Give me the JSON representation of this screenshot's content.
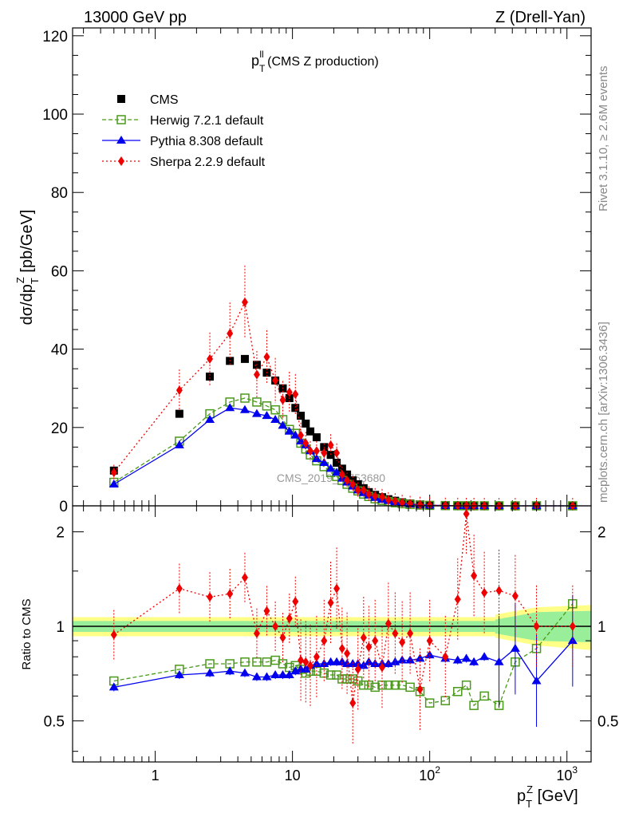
{
  "header": {
    "left": "13000 GeV pp",
    "right": "Z (Drell-Yan)"
  },
  "plot": {
    "title_main": "p",
    "title_sup": "ll",
    "title_sub": "T",
    "title_rest": " (CMS Z production)",
    "watermark": "CMS_2019_I1753680",
    "y_label": "dσ/dp",
    "y_label_sup": "Z",
    "y_label_sub": "T",
    "y_label_rest": " [pb/GeV]",
    "ratio_label": "Ratio to CMS",
    "x_label": "p",
    "x_label_sup": "Z",
    "x_label_sub": "T",
    "x_label_rest": " [GeV]"
  },
  "side_text": {
    "rivet": "Rivet 3.1.10, ≥ 2.6M events",
    "mcplots": "mcplots.cern.ch [arXiv:1306.3436]"
  },
  "legend": [
    {
      "label": "CMS",
      "color": "#000000",
      "marker": "square"
    },
    {
      "label": "Herwig 7.2.1 default",
      "color": "#4a9a1a",
      "marker": "open-square"
    },
    {
      "label": "Pythia 8.308 default",
      "color": "#0000ee",
      "marker": "triangle"
    },
    {
      "label": "Sherpa 2.2.9 default",
      "color": "#ee0000",
      "marker": "diamond"
    }
  ],
  "axes": {
    "top_yticks": [
      "0",
      "20",
      "40",
      "60",
      "80",
      "100",
      "120"
    ],
    "bottom_yticks": [
      "0.5",
      "1",
      "2"
    ],
    "bottom_yticks_right": [
      "0.5",
      "1",
      "2"
    ],
    "xtick_labels": [
      {
        "base": "1",
        "exp": ""
      },
      {
        "base": "10",
        "exp": ""
      },
      {
        "base": "10",
        "exp": "2"
      },
      {
        "base": "10",
        "exp": "3"
      }
    ]
  },
  "chart_data": [
    {
      "type": "scatter",
      "title": "pT ll (CMS Z production)",
      "xlabel": "pT Z [GeV]",
      "ylabel": "dσ/dpT Z [pb/GeV]",
      "xscale": "log",
      "xlim": [
        0.25,
        1500
      ],
      "ylim": [
        0,
        122
      ],
      "x": [
        0.5,
        1.5,
        2.5,
        3.5,
        4.5,
        5.5,
        6.5,
        7.5,
        8.5,
        9.5,
        10.5,
        11.5,
        12.5,
        13.5,
        15,
        17,
        19,
        21,
        23,
        25,
        27.5,
        30,
        33,
        36,
        40,
        45,
        50,
        56,
        63,
        72,
        85,
        100,
        130,
        160,
        185,
        210,
        250,
        320,
        420,
        600,
        1100
      ],
      "series": [
        {
          "name": "CMS",
          "values": [
            9,
            23.5,
            33,
            37,
            37.5,
            36,
            34,
            32,
            30,
            27.5,
            25,
            23,
            21,
            19,
            17.5,
            15,
            13,
            11,
            9.5,
            8,
            6.5,
            5.5,
            4.5,
            3.5,
            2.8,
            2.2,
            1.7,
            1.3,
            0.9,
            0.6,
            0.35,
            0.2,
            0.1,
            0.05,
            0.03,
            0.02,
            0.015,
            0.008,
            0.004,
            0.002,
            0.0005
          ]
        },
        {
          "name": "Herwig 7.2.1 default",
          "values": [
            6,
            16.5,
            23.5,
            26.5,
            27.5,
            26.5,
            25.5,
            24.5,
            22,
            19.5,
            18.5,
            16,
            14.5,
            13,
            11.5,
            10,
            8.5,
            7.5,
            6.5,
            5.5,
            4.5,
            3.8,
            3,
            2.4,
            1.8,
            1.4,
            1.1,
            0.8,
            0.55,
            0.38,
            0.2,
            0.12,
            0.06,
            0.03,
            0.02,
            0.012,
            0.009,
            0.006,
            0.003,
            0.002,
            0.0006
          ]
        },
        {
          "name": "Pythia 8.308 default",
          "values": [
            5.5,
            15.5,
            22,
            25,
            24.5,
            23.5,
            23,
            22,
            20.5,
            19,
            18,
            16.5,
            15.5,
            14,
            12,
            11,
            9.5,
            8.5,
            7,
            6,
            5,
            4,
            3.3,
            2.7,
            2.1,
            1.6,
            1.3,
            1,
            0.7,
            0.45,
            0.27,
            0.15,
            0.075,
            0.04,
            0.023,
            0.015,
            0.012,
            0.006,
            0.003,
            0.0018,
            0.0004
          ]
        },
        {
          "name": "Sherpa 2.2.9 default",
          "values": [
            8.5,
            29.5,
            37.5,
            44,
            52,
            33.5,
            38,
            32,
            27,
            29,
            28.5,
            18,
            16,
            14,
            14,
            13.5,
            15.5,
            13.5,
            8,
            6.5,
            5.5,
            4,
            4,
            3,
            2.5,
            2.3,
            1.5,
            1.2,
            0.8,
            0.55,
            0.3,
            0.18,
            0.09,
            0.06,
            0.04,
            0.04,
            0.02,
            0.01,
            0.005,
            0.002,
            0.0005
          ]
        }
      ]
    },
    {
      "type": "scatter",
      "ylabel": "Ratio to CMS",
      "xscale": "log",
      "yscale": "log",
      "xlim": [
        0.25,
        1500
      ],
      "ylim": [
        0.37,
        2.42
      ],
      "reference_band": {
        "inner": [
          0.96,
          1.04
        ],
        "outer": [
          0.93,
          1.07
        ]
      },
      "x": [
        0.5,
        1.5,
        2.5,
        3.5,
        4.5,
        5.5,
        6.5,
        7.5,
        8.5,
        9.5,
        10.5,
        11.5,
        12.5,
        13.5,
        15,
        17,
        19,
        21,
        23,
        25,
        27.5,
        30,
        33,
        36,
        40,
        45,
        50,
        56,
        63,
        72,
        85,
        100,
        130,
        160,
        185,
        210,
        250,
        320,
        420,
        600,
        1100
      ],
      "series": [
        {
          "name": "Herwig 7.2.1 default",
          "values": [
            0.67,
            0.73,
            0.76,
            0.76,
            0.77,
            0.77,
            0.77,
            0.78,
            0.76,
            0.74,
            0.75,
            0.73,
            0.71,
            0.72,
            0.72,
            0.71,
            0.7,
            0.7,
            0.68,
            0.68,
            0.68,
            0.67,
            0.65,
            0.65,
            0.64,
            0.65,
            0.65,
            0.65,
            0.65,
            0.64,
            0.62,
            0.57,
            0.58,
            0.62,
            0.65,
            0.56,
            0.6,
            0.56,
            0.77,
            0.85,
            1.18
          ]
        },
        {
          "name": "Pythia 8.308 default",
          "values": [
            0.64,
            0.7,
            0.71,
            0.72,
            0.71,
            0.69,
            0.69,
            0.7,
            0.7,
            0.7,
            0.72,
            0.73,
            0.73,
            0.75,
            0.76,
            0.76,
            0.77,
            0.77,
            0.77,
            0.76,
            0.76,
            0.76,
            0.75,
            0.77,
            0.76,
            0.76,
            0.76,
            0.77,
            0.78,
            0.78,
            0.79,
            0.81,
            0.79,
            0.78,
            0.79,
            0.77,
            0.8,
            0.77,
            0.85,
            0.67,
            0.9
          ]
        },
        {
          "name": "Sherpa 2.2.9 default",
          "values": [
            0.94,
            1.32,
            1.24,
            1.27,
            1.43,
            0.95,
            1.12,
            1.0,
            0.92,
            1.06,
            1.2,
            0.78,
            0.77,
            0.75,
            0.8,
            0.9,
            1.19,
            1.32,
            0.85,
            0.82,
            0.57,
            0.73,
            0.92,
            0.86,
            0.9,
            0.74,
            1.02,
            0.95,
            0.89,
            0.95,
            0.63,
            0.9,
            0.8,
            1.22,
            2.28,
            1.45,
            1.28,
            1.3,
            1.25,
            1.0,
            1.0
          ]
        }
      ]
    }
  ]
}
